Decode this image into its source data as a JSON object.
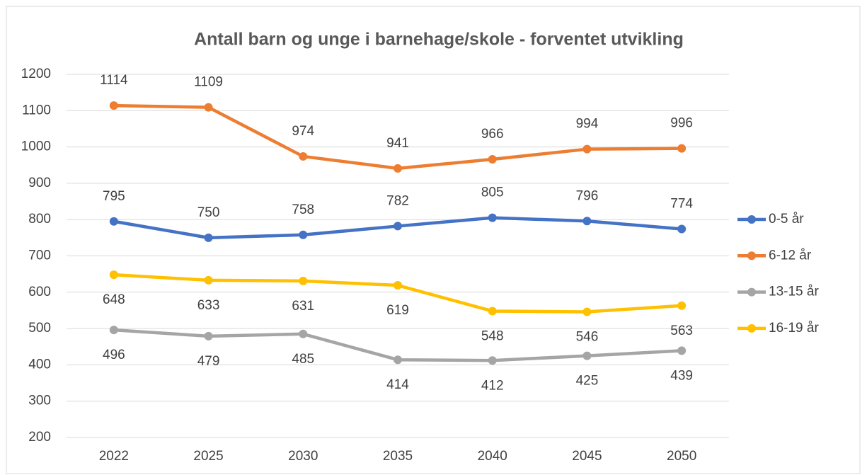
{
  "chart_data": {
    "type": "line",
    "title": "Antall barn og unge i barnehage/skole - forventet utvikling",
    "categories": [
      "2022",
      "2025",
      "2030",
      "2035",
      "2040",
      "2045",
      "2050"
    ],
    "series": [
      {
        "name": "0-5 år",
        "color": "#4472c4",
        "values": [
          795,
          750,
          758,
          782,
          805,
          796,
          774
        ],
        "label_position": "above"
      },
      {
        "name": "6-12 år",
        "color": "#ed7d31",
        "values": [
          1114,
          1109,
          974,
          941,
          966,
          994,
          996
        ],
        "label_position": "above"
      },
      {
        "name": "13-15 år",
        "color": "#a5a5a5",
        "values": [
          496,
          479,
          485,
          414,
          412,
          425,
          439
        ],
        "label_position": "below"
      },
      {
        "name": "16-19 år",
        "color": "#ffc000",
        "values": [
          648,
          633,
          631,
          619,
          548,
          546,
          563
        ],
        "label_position": "below"
      }
    ],
    "ylim": [
      200,
      1200
    ],
    "yticks": [
      200,
      300,
      400,
      500,
      600,
      700,
      800,
      900,
      1000,
      1100,
      1200
    ],
    "grid": true,
    "legend": "right"
  }
}
